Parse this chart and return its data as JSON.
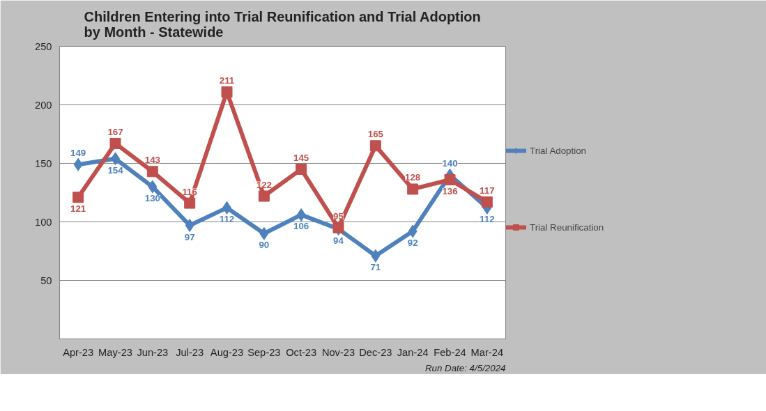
{
  "chart_data": {
    "type": "line",
    "title": "Children Entering into Trial Reunification and Trial Adoption by Month - Statewide",
    "categories": [
      "Apr-23",
      "May-23",
      "Jun-23",
      "Jul-23",
      "Aug-23",
      "Sep-23",
      "Oct-23",
      "Nov-23",
      "Dec-23",
      "Jan-24",
      "Feb-24",
      "Mar-24"
    ],
    "series": [
      {
        "name": "Trial Adoption",
        "color": "#4f81bd",
        "marker": "diamond",
        "values": [
          149,
          154,
          130,
          97,
          112,
          90,
          106,
          94,
          71,
          92,
          140,
          112
        ]
      },
      {
        "name": "Trial Reunification",
        "color": "#c0504d",
        "marker": "square",
        "values": [
          121,
          167,
          143,
          116,
          211,
          122,
          145,
          95,
          165,
          128,
          136,
          117
        ]
      }
    ],
    "ylim": [
      0,
      250
    ],
    "yticks": [
      50,
      100,
      150,
      200,
      250
    ],
    "grid": "y",
    "legend": "right",
    "data_labels": true,
    "line_style": "solid",
    "annotations": [
      "Run Date: 4/5/2024"
    ]
  }
}
